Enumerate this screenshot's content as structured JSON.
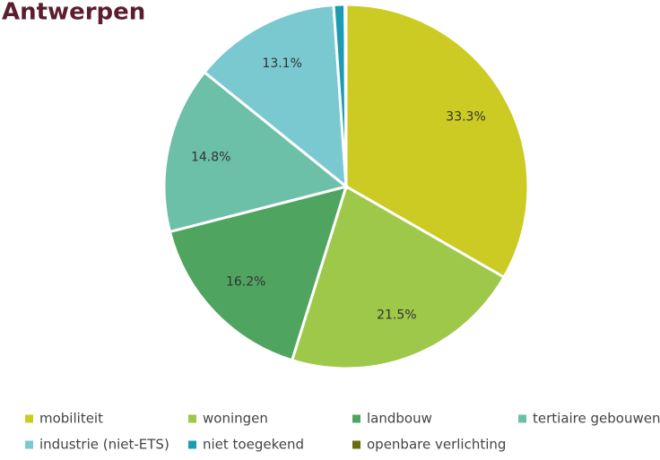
{
  "chart_data": {
    "type": "pie",
    "title": "Antwerpen",
    "categories": [
      "mobiliteit",
      "woningen",
      "landbouw",
      "tertiaire gebouwen",
      "industrie (niet-ETS)",
      "niet toegekend",
      "openbare verlichting"
    ],
    "values": [
      33.3,
      21.5,
      16.2,
      14.8,
      13.1,
      1.0,
      0.1
    ],
    "value_labels": [
      "33.3%",
      "21.5%",
      "16.2%",
      "14.8%",
      "13.1%",
      null,
      null
    ],
    "colors": [
      "#cbcb23",
      "#9dc84a",
      "#4fa55f",
      "#6dc0a8",
      "#7ac9d0",
      "#1c9bb1",
      "#6b6b12"
    ],
    "legend": "bottom"
  }
}
